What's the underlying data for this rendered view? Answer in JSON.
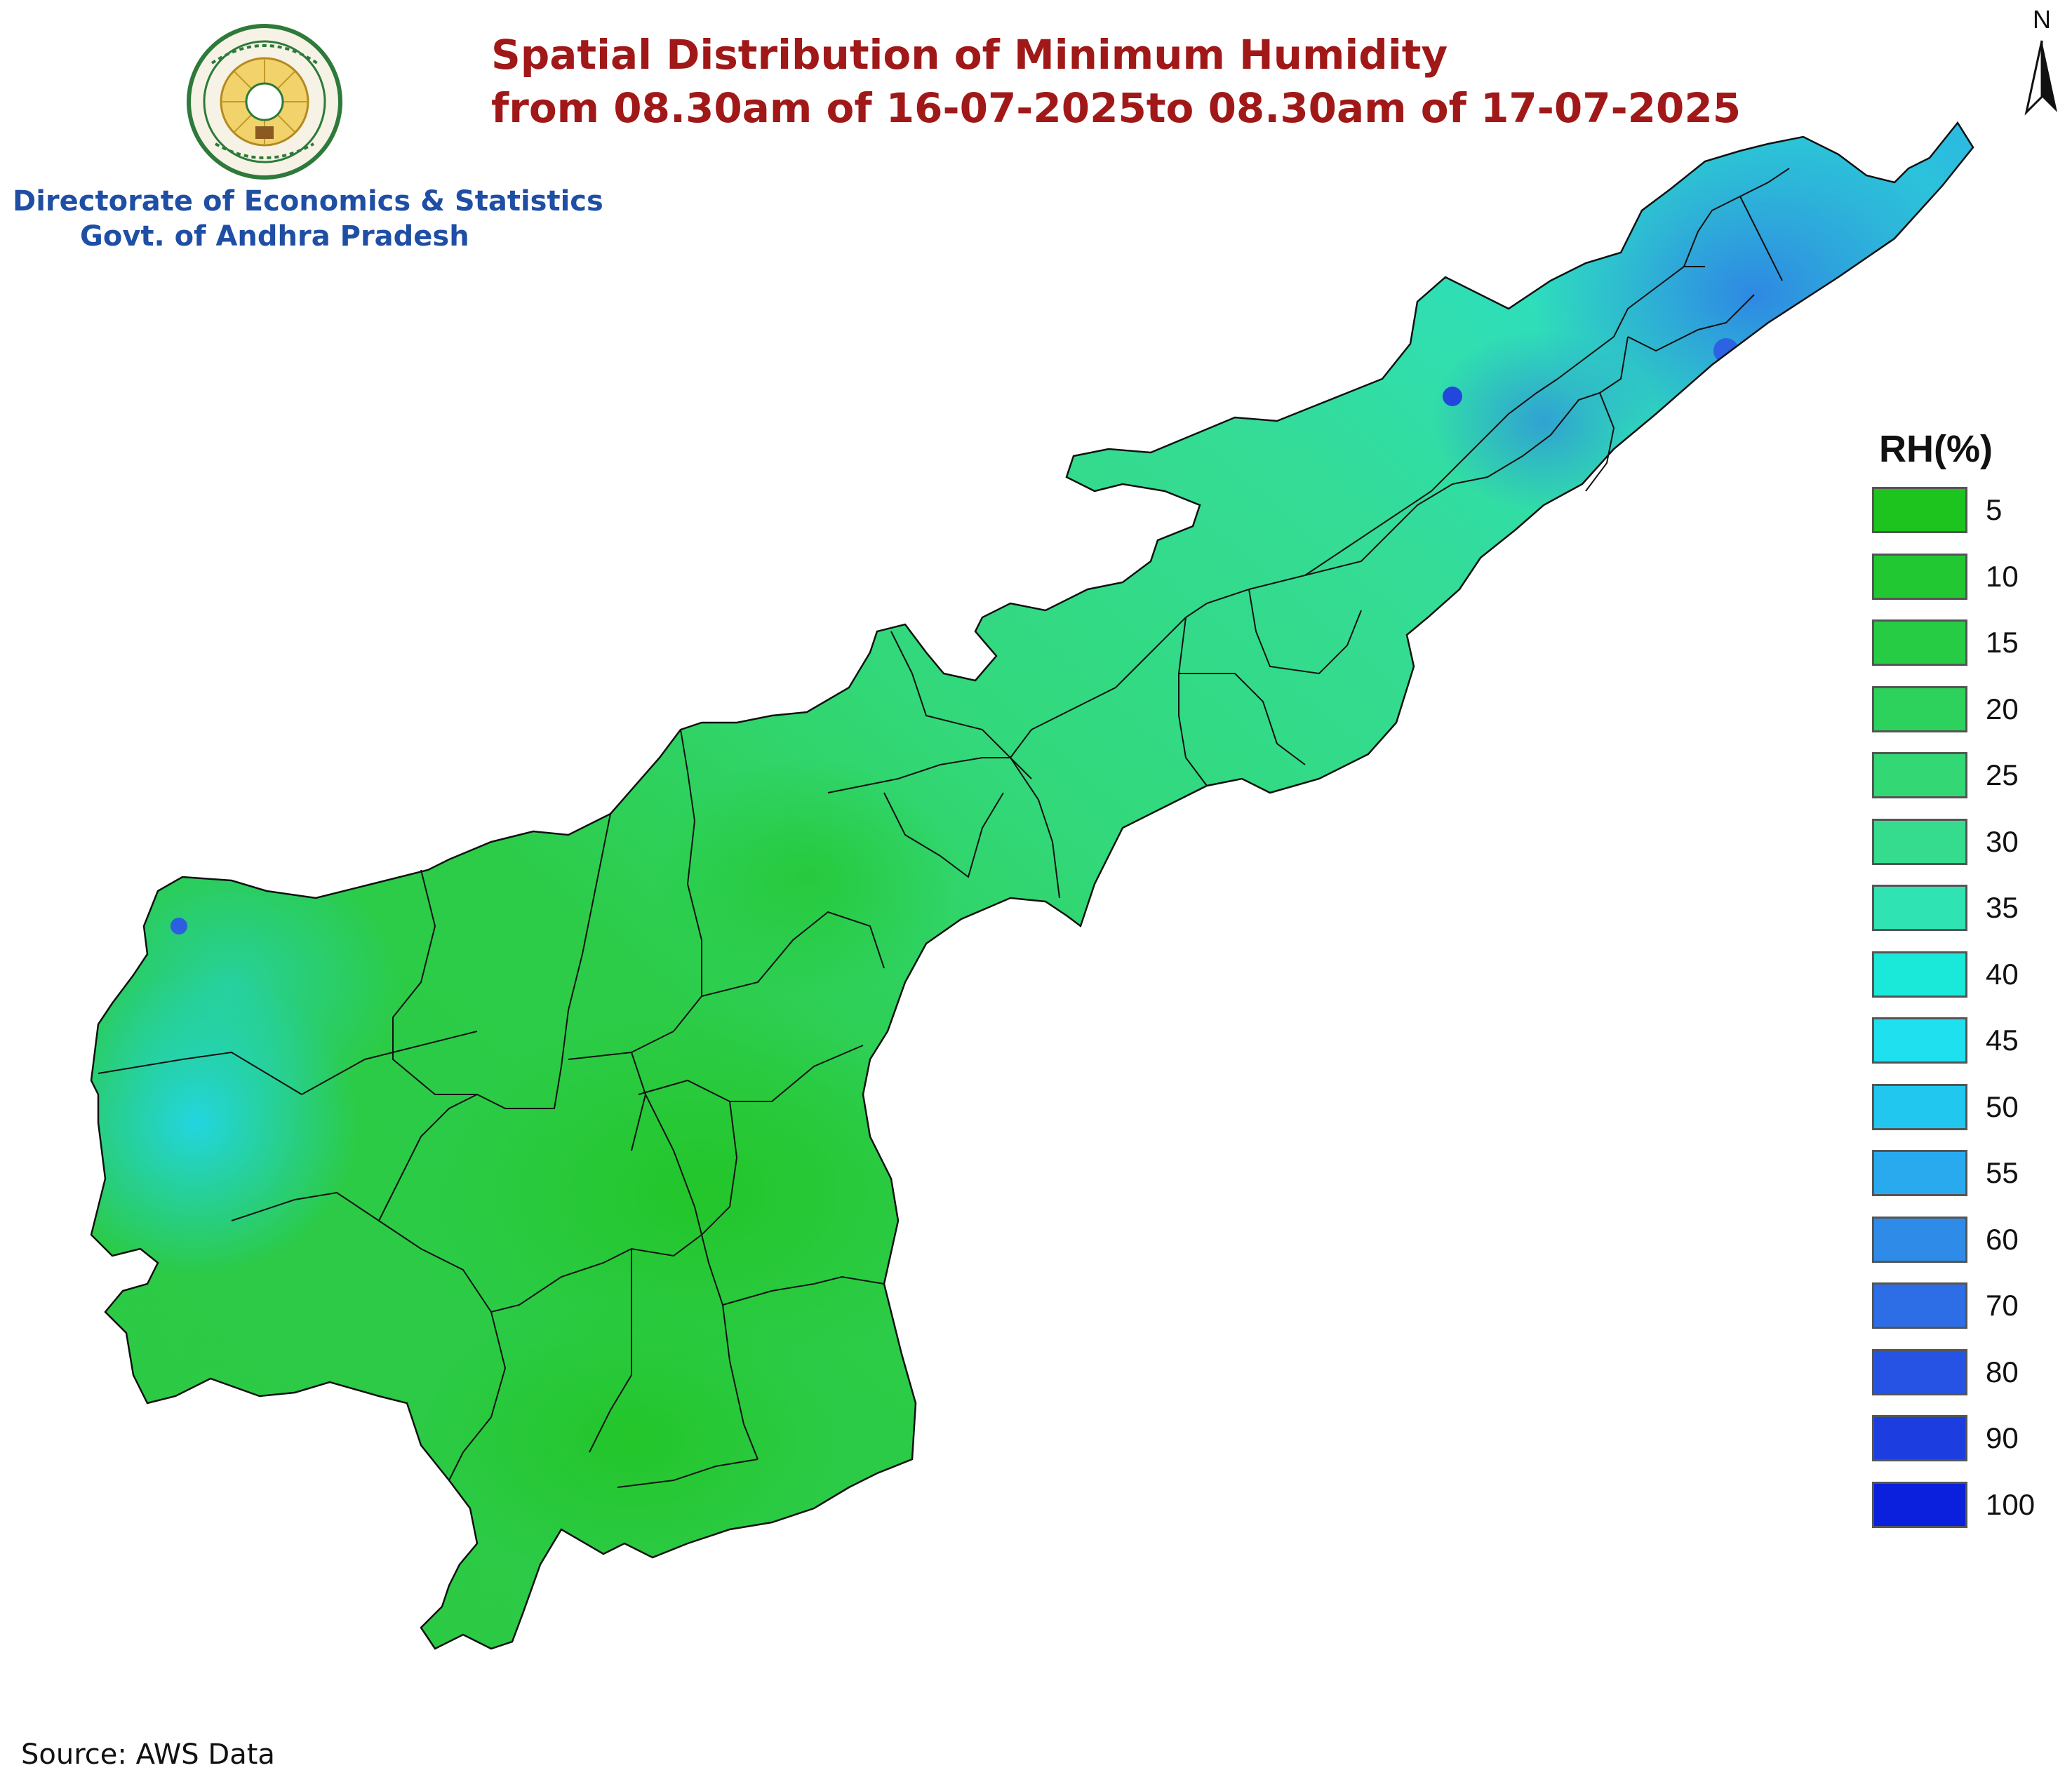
{
  "title": {
    "line1": "Spatial Distribution of Minimum Humidity",
    "line2": "from 08.30am of 16-07-2025to 08.30am of 17-07-2025"
  },
  "organization": {
    "line1": "Directorate of Economics & Statistics",
    "line2": "Govt. of Andhra Pradesh"
  },
  "north_arrow": {
    "label": "N"
  },
  "legend": {
    "title": "RH(%)",
    "items": [
      {
        "label": "5",
        "color": "#1ec41e"
      },
      {
        "label": "10",
        "color": "#22c832"
      },
      {
        "label": "15",
        "color": "#27cc45"
      },
      {
        "label": "20",
        "color": "#2dd25c"
      },
      {
        "label": "25",
        "color": "#33d874"
      },
      {
        "label": "30",
        "color": "#35dc8e"
      },
      {
        "label": "35",
        "color": "#2fe3b2"
      },
      {
        "label": "40",
        "color": "#1ae8d8"
      },
      {
        "label": "45",
        "color": "#1ee0ee"
      },
      {
        "label": "50",
        "color": "#22c7ef"
      },
      {
        "label": "55",
        "color": "#2aaaee"
      },
      {
        "label": "60",
        "color": "#2e8ce8"
      },
      {
        "label": "70",
        "color": "#2d6ee6"
      },
      {
        "label": "80",
        "color": "#2653e3"
      },
      {
        "label": "90",
        "color": "#1c3ddf"
      },
      {
        "label": "100",
        "color": "#0a20dc"
      }
    ]
  },
  "source": "Source: AWS Data"
}
